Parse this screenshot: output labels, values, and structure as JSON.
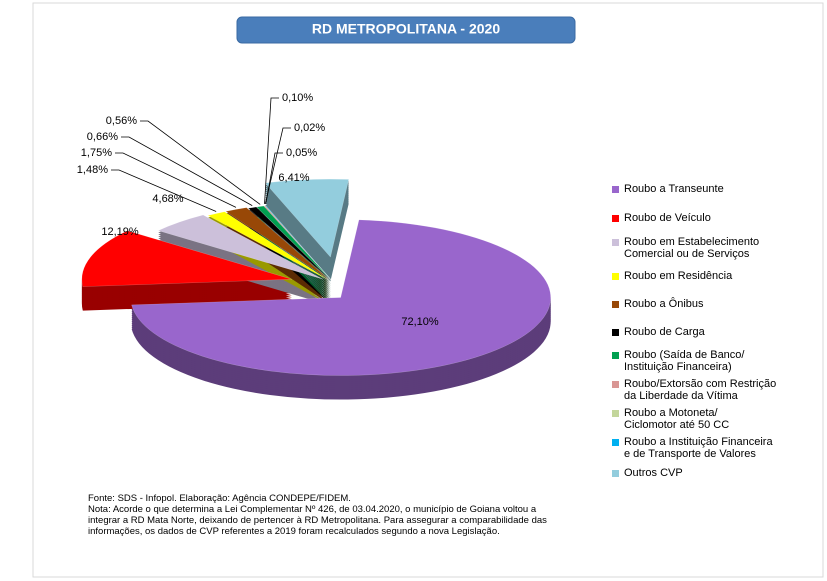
{
  "chart_data": {
    "type": "pie",
    "title": "RD METROPOLITANA - 2020",
    "categories": [
      "Roubo a Transeunte",
      "Roubo de Veículo",
      "Roubo em Estabelecimento\nComercial ou de Serviços",
      "Roubo em Residência",
      "Roubo a Ônibus",
      "Roubo de Carga",
      "Roubo (Saída de Banco/\nInstituição Financeira)",
      "Roubo/Extorsão com Restrição\nda Liberdade da Vítima",
      "Roubo a Motoneta/\nCiclomotor até 50 CC",
      "Roubo a Instituição Financeira\ne de Transporte de Valores",
      "Outros CVP"
    ],
    "values": [
      72.1,
      12.19,
      4.68,
      1.48,
      1.75,
      0.66,
      0.56,
      0.1,
      0.02,
      0.05,
      6.41
    ],
    "value_labels": [
      "72,10%",
      "12,19%",
      "4,68%",
      "1,48%",
      "1,75%",
      "0,66%",
      "0,56%",
      "0,10%",
      "0,02%",
      "0,05%",
      "6,41%"
    ],
    "colors": [
      "#9966cc",
      "#ff0000",
      "#ccc0da",
      "#ffff00",
      "#984807",
      "#000000",
      "#00a050",
      "#d99694",
      "#c3d69b",
      "#00b0f0",
      "#93cddd"
    ],
    "legend": "right",
    "source": "Fonte: SDS - Infopol.  Elaboração: Agência CONDEPE/FIDEM.",
    "note": "Nota: Acorde o que determina a Lei  Complementar Nº 426, de 03.04.2020, o município de Goiana voltou a\nintegrar a RD Mata Norte, deixando de pertencer à RD Metropolitana. Para assegurar a comparabilidade das\ninformações, os dados de CVP referentes a 2019 foram recalculados segundo a nova Legislação."
  }
}
